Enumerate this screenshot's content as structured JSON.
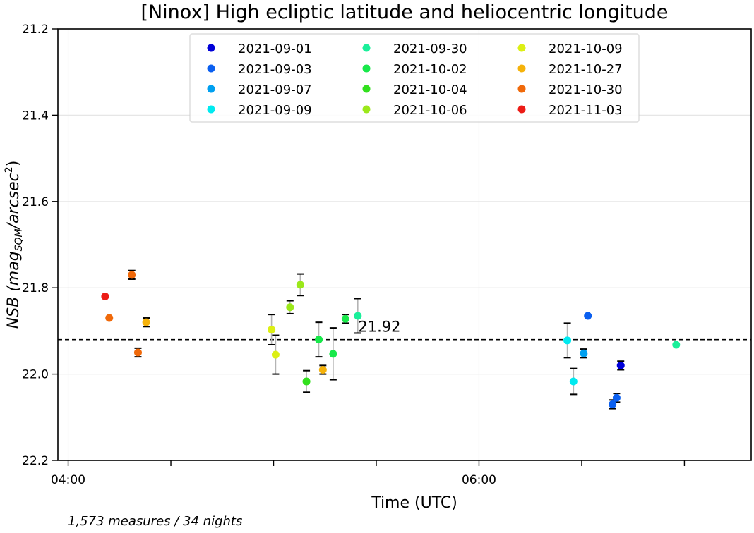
{
  "chart_data": {
    "type": "scatter",
    "title": "[Ninox] High ecliptic latitude and heliocentric longitude",
    "xlabel": "Time (UTC)",
    "ylabel": {
      "main": "NSB (mag",
      "sub": "SQM",
      "mid": "/arcsec",
      "sup": "2",
      "end": ")"
    },
    "xlim": [
      3.95,
      7.325
    ],
    "ylim": [
      22.2,
      21.2
    ],
    "x_ticks": [
      4,
      4.5,
      5,
      5.5,
      6,
      6.5,
      7
    ],
    "x_tick_labels": [
      "04:00",
      "",
      "",
      "",
      "06:00",
      "",
      ""
    ],
    "y_ticks": [
      21.2,
      21.4,
      21.6,
      21.8,
      22.0,
      22.2
    ],
    "y_tick_labels": [
      "21.2",
      "21.4",
      "21.6",
      "21.8",
      "22.0",
      "22.2"
    ],
    "grid_x": [
      4,
      6
    ],
    "grid": true,
    "reference_line": {
      "value": 21.92,
      "label": "21.92",
      "label_x": 5.35
    },
    "legend_position": "top-center",
    "series": [
      {
        "name": "2021-09-01",
        "color": "#0000d8",
        "points": [
          [
            6.69,
            21.98,
            0.01
          ]
        ]
      },
      {
        "name": "2021-09-03",
        "color": "#0a5ff0",
        "points": [
          [
            6.65,
            22.07,
            0.01
          ],
          [
            6.67,
            22.055,
            0.01
          ],
          [
            6.53,
            21.865,
            0
          ]
        ]
      },
      {
        "name": "2021-09-07",
        "color": "#00a0f0",
        "points": [
          [
            6.51,
            21.952,
            0.01
          ]
        ]
      },
      {
        "name": "2021-09-09",
        "color": "#00eaf0",
        "points": [
          [
            6.43,
            21.922,
            0.04
          ],
          [
            6.46,
            22.017,
            0.03
          ]
        ]
      },
      {
        "name": "2021-09-30",
        "color": "#1aef9a",
        "points": [
          [
            5.41,
            21.865,
            0.04
          ],
          [
            6.96,
            21.932,
            0
          ]
        ]
      },
      {
        "name": "2021-10-02",
        "color": "#18e84a",
        "points": [
          [
            5.22,
            21.92,
            0.04
          ],
          [
            5.29,
            21.953,
            0.06
          ],
          [
            5.35,
            21.872,
            0.01
          ]
        ]
      },
      {
        "name": "2021-10-04",
        "color": "#32e01e",
        "points": [
          [
            5.16,
            22.017,
            0.025
          ]
        ]
      },
      {
        "name": "2021-10-06",
        "color": "#9be81a",
        "points": [
          [
            5.08,
            21.845,
            0.015
          ],
          [
            5.13,
            21.793,
            0.025
          ]
        ]
      },
      {
        "name": "2021-10-09",
        "color": "#dcef14",
        "points": [
          [
            4.99,
            21.897,
            0.035
          ],
          [
            5.01,
            21.955,
            0.045
          ]
        ]
      },
      {
        "name": "2021-10-27",
        "color": "#f5b20a",
        "points": [
          [
            4.38,
            21.88,
            0.01
          ],
          [
            5.24,
            21.99,
            0.01
          ]
        ]
      },
      {
        "name": "2021-10-30",
        "color": "#f0690a",
        "points": [
          [
            4.31,
            21.77,
            0.01
          ],
          [
            4.34,
            21.95,
            0.01
          ],
          [
            4.2,
            21.87,
            0
          ]
        ]
      },
      {
        "name": "2021-11-03",
        "color": "#ec1c16",
        "points": [
          [
            4.18,
            21.82,
            0
          ]
        ]
      }
    ]
  },
  "footnote": "1,573 measures / 34 nights"
}
